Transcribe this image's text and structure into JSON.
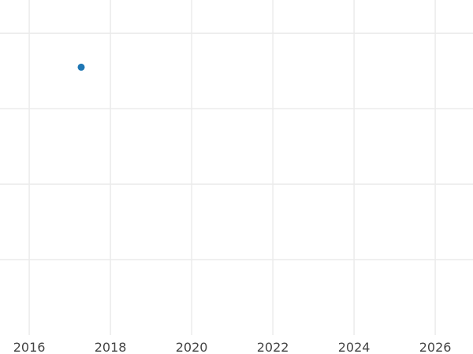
{
  "chart_data": {
    "type": "scatter",
    "title": "",
    "xlabel": "",
    "ylabel": "",
    "xlim": [
      2015.28,
      2026.93
    ],
    "ylim": [
      0,
      4.44
    ],
    "x_ticks": [
      "2016",
      "2018",
      "2020",
      "2022",
      "2024",
      "2026"
    ],
    "y_gridlines": [
      1,
      2,
      3,
      4
    ],
    "y_tick_labels_shown": false,
    "grid": true,
    "points": [
      {
        "x": 2017.28,
        "y": 3.55
      }
    ],
    "colors": {
      "point": "#1f77b4",
      "grid": "#ebebeb",
      "tick_text": "#444444"
    }
  }
}
